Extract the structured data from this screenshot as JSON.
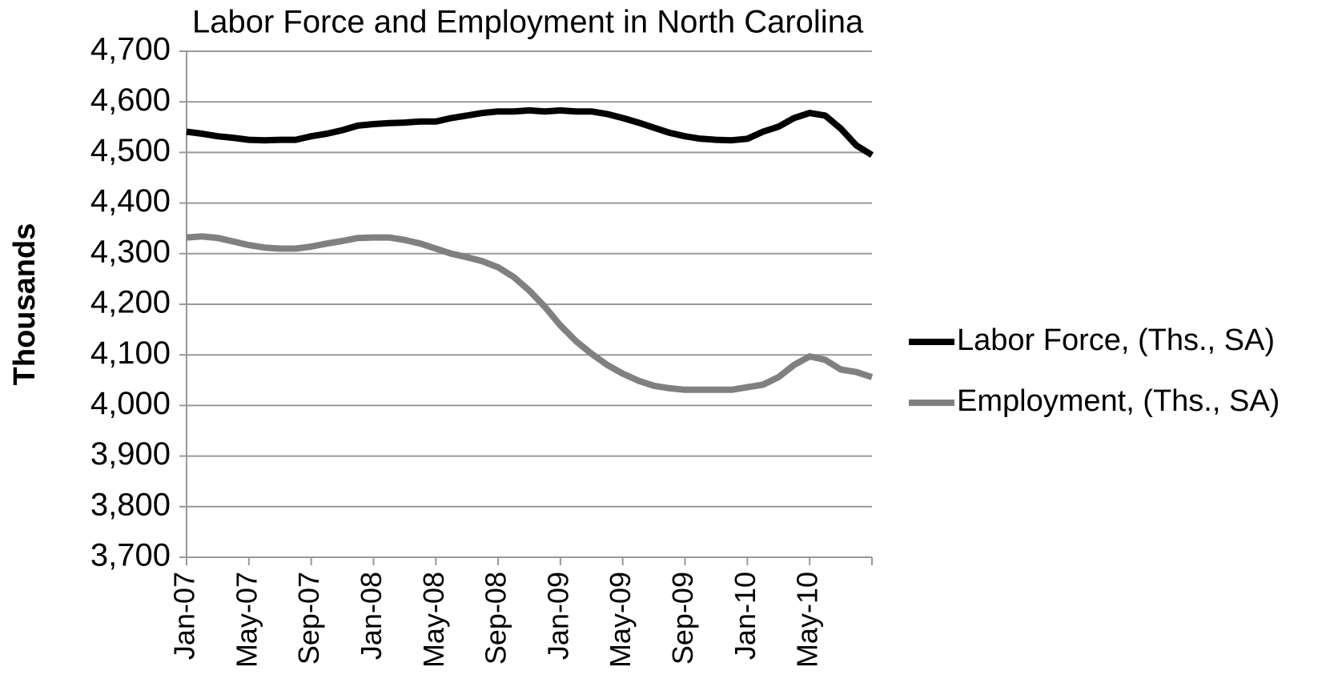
{
  "chart_data": {
    "type": "line",
    "title": "Labor Force and Employment in North Carolina",
    "y_label": "Thousands",
    "categories": [
      "Jan-07",
      null,
      null,
      null,
      "May-07",
      null,
      null,
      null,
      "Sep-07",
      null,
      null,
      null,
      "Jan-08",
      null,
      null,
      null,
      "May-08",
      null,
      null,
      null,
      "Sep-08",
      null,
      null,
      null,
      "Jan-09",
      null,
      null,
      null,
      "May-09",
      null,
      null,
      null,
      "Sep-09",
      null,
      null,
      null,
      "Jan-10",
      null,
      null,
      null,
      "May-10",
      null,
      null,
      null,
      null
    ],
    "series": [
      {
        "name": "Labor Force, (Ths., SA)",
        "color": "#000000",
        "values": [
          4541,
          4537,
          4532,
          4529,
          4525,
          4524,
          4525,
          4525,
          4532,
          4537,
          4544,
          4553,
          4556,
          4558,
          4559,
          4561,
          4561,
          4568,
          4573,
          4578,
          4581,
          4581,
          4583,
          4581,
          4583,
          4581,
          4581,
          4576,
          4568,
          4559,
          4549,
          4539,
          4532,
          4527,
          4525,
          4524,
          4527,
          4541,
          4551,
          4568,
          4578,
          4573,
          4547,
          4514,
          4495
        ]
      },
      {
        "name": "Employment, (Ths., SA)",
        "color": "#808080",
        "values": [
          4332,
          4334,
          4331,
          4324,
          4317,
          4312,
          4310,
          4310,
          4314,
          4320,
          4325,
          4331,
          4332,
          4332,
          4327,
          4320,
          4310,
          4300,
          4293,
          4285,
          4273,
          4254,
          4227,
          4195,
          4158,
          4127,
          4102,
          4080,
          4063,
          4049,
          4039,
          4034,
          4031,
          4031,
          4031,
          4031,
          4036,
          4041,
          4056,
          4080,
          4097,
          4090,
          4071,
          4066,
          4056
        ]
      }
    ],
    "ylim": [
      3700,
      4700
    ],
    "yticks": [
      {
        "value": 3700,
        "label": "3,700"
      },
      {
        "value": 3800,
        "label": "3,800"
      },
      {
        "value": 3900,
        "label": "3,900"
      },
      {
        "value": 4000,
        "label": "4,000"
      },
      {
        "value": 4100,
        "label": "4,100"
      },
      {
        "value": 4200,
        "label": "4,200"
      },
      {
        "value": 4300,
        "label": "4,300"
      },
      {
        "value": 4400,
        "label": "4,400"
      },
      {
        "value": 4500,
        "label": "4,500"
      },
      {
        "value": 4600,
        "label": "4,600"
      },
      {
        "value": 4700,
        "label": "4,700"
      }
    ],
    "grid": true,
    "legend": "right"
  }
}
